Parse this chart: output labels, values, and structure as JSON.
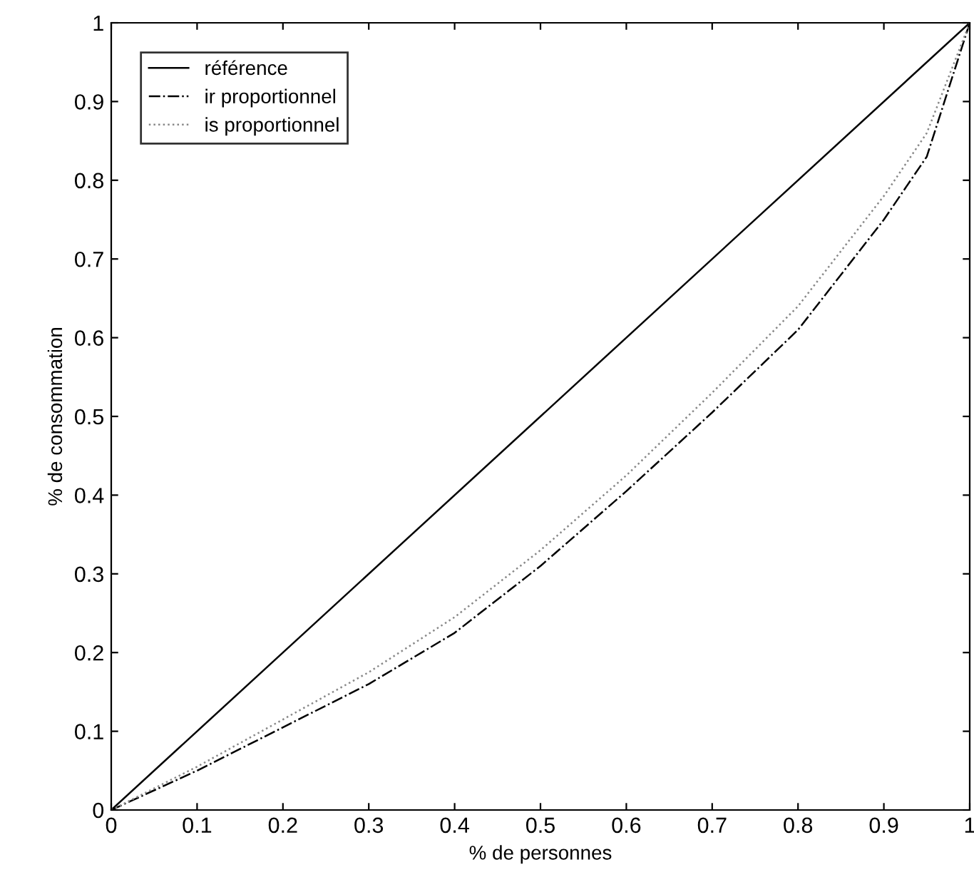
{
  "chart_data": {
    "type": "line",
    "xlabel": "% de personnes",
    "ylabel": "% de consommation",
    "xlim": [
      0,
      1
    ],
    "ylim": [
      0,
      1
    ],
    "xticks": [
      0,
      0.1,
      0.2,
      0.3,
      0.4,
      0.5,
      0.6,
      0.7,
      0.8,
      0.9,
      1
    ],
    "yticks": [
      0,
      0.1,
      0.2,
      0.3,
      0.4,
      0.5,
      0.6,
      0.7,
      0.8,
      0.9,
      1
    ],
    "grid": false,
    "legend": "top left",
    "series": [
      {
        "name": "référence",
        "color": "#000000",
        "line_style": "solid",
        "x": [
          0,
          1
        ],
        "values": [
          0,
          1
        ]
      },
      {
        "name": "ir proportionnel",
        "color": "#000000",
        "line_style": "dashdot",
        "x": [
          0,
          0.1,
          0.2,
          0.3,
          0.4,
          0.5,
          0.6,
          0.7,
          0.8,
          0.9,
          0.95,
          1
        ],
        "values": [
          0,
          0.05,
          0.105,
          0.16,
          0.225,
          0.31,
          0.405,
          0.505,
          0.61,
          0.75,
          0.83,
          1
        ]
      },
      {
        "name": "is proportionnel",
        "color": "#888888",
        "line_style": "dotted",
        "x": [
          0,
          0.1,
          0.2,
          0.3,
          0.4,
          0.5,
          0.6,
          0.7,
          0.8,
          0.9,
          0.95,
          1
        ],
        "values": [
          0,
          0.055,
          0.115,
          0.175,
          0.245,
          0.33,
          0.425,
          0.53,
          0.64,
          0.78,
          0.86,
          1
        ]
      }
    ]
  }
}
